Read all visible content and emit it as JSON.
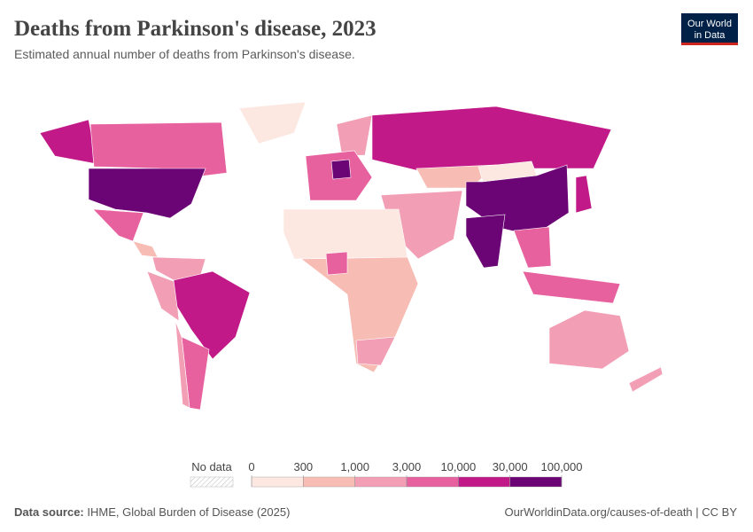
{
  "header": {
    "title": "Deaths from Parkinson's disease, 2023",
    "subtitle": "Estimated annual number of deaths from Parkinson's disease."
  },
  "logo": {
    "lines": [
      "Our World",
      "in Data"
    ]
  },
  "legend": {
    "no_data_label": "No data",
    "ticks": [
      0,
      300,
      {
        "value": 1000,
        "label": "1,000"
      },
      {
        "value": 3000,
        "label": "3,000"
      },
      {
        "value": 10000,
        "label": "10,000"
      },
      {
        "value": 30000,
        "label": "30,000"
      },
      {
        "value": 100000,
        "label": "100,000"
      }
    ],
    "colors": [
      "#fce7e1",
      "#f7bcb4",
      "#f29fb6",
      "#e8619f",
      "#c11a88",
      "#6b0474"
    ]
  },
  "footer": {
    "source_label": "Data source:",
    "source": "IHME, Global Burden of Disease (2025)",
    "url": "OurWorldinData.org/causes-of-death | CC BY"
  }
}
